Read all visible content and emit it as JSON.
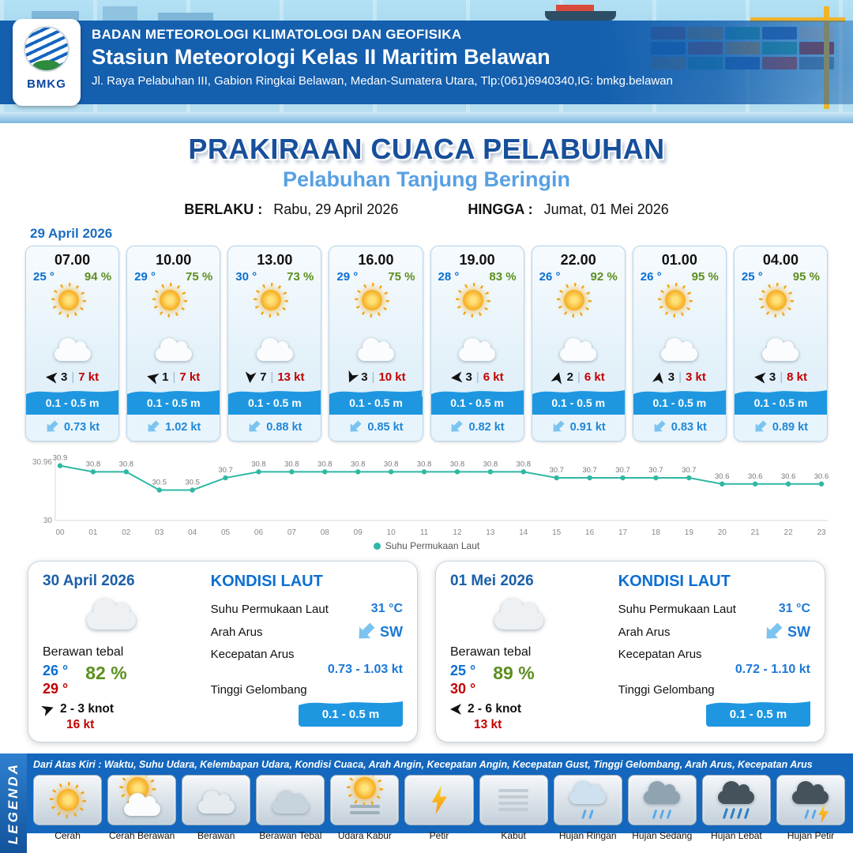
{
  "header": {
    "logo": "BMKG",
    "org": "BADAN METEOROLOGI KLIMATOLOGI DAN GEOFISIKA",
    "station": "Stasiun Meteorologi Kelas II Maritim Belawan",
    "address": "Jl. Raya Pelabuhan III, Gabion Ringkai Belawan, Medan-Sumatera Utara, Tlp:(061)6940340,IG: bmkg.belawan"
  },
  "title": "PRAKIRAAN CUACA PELABUHAN",
  "subtitle": "Pelabuhan Tanjung Beringin",
  "validity": {
    "berlaku_label": "BERLAKU :",
    "berlaku": "Rabu, 29 April 2026",
    "hingga_label": "HINGGA :",
    "hingga": "Jumat, 01 Mei 2026"
  },
  "forecast_date": "29 April 2026",
  "hourly": [
    {
      "time": "07.00",
      "temp": "25 °",
      "hum": "94 %",
      "wind_deg": 185,
      "wind": "3",
      "gust": "7 kt",
      "wave": "0.1 - 0.5 m",
      "current": "0.73 kt"
    },
    {
      "time": "10.00",
      "temp": "29 °",
      "hum": "75 %",
      "wind_deg": 195,
      "wind": "1",
      "gust": "7 kt",
      "wave": "0.1 - 0.5 m",
      "current": "1.02 kt"
    },
    {
      "time": "13.00",
      "temp": "30 °",
      "hum": "73 %",
      "wind_deg": 95,
      "wind": "7",
      "gust": "13 kt",
      "wave": "0.1 - 0.5 m",
      "current": "0.88 kt"
    },
    {
      "time": "16.00",
      "temp": "29 °",
      "hum": "75 %",
      "wind_deg": 115,
      "wind": "3",
      "gust": "10 kt",
      "wave": "0.1 - 0.5 m",
      "current": "0.85 kt"
    },
    {
      "time": "19.00",
      "temp": "28 °",
      "hum": "83 %",
      "wind_deg": 175,
      "wind": "3",
      "gust": "6 kt",
      "wave": "0.1 - 0.5 m",
      "current": "0.82 kt"
    },
    {
      "time": "22.00",
      "temp": "26 °",
      "hum": "92 %",
      "wind_deg": 285,
      "wind": "2",
      "gust": "6 kt",
      "wave": "0.1 - 0.5 m",
      "current": "0.91 kt"
    },
    {
      "time": "01.00",
      "temp": "26 °",
      "hum": "95 %",
      "wind_deg": 280,
      "wind": "3",
      "gust": "3 kt",
      "wave": "0.1 - 0.5 m",
      "current": "0.83 kt"
    },
    {
      "time": "04.00",
      "temp": "25 °",
      "hum": "95 %",
      "wind_deg": 185,
      "wind": "3",
      "gust": "8 kt",
      "wave": "0.1 - 0.5 m",
      "current": "0.89 kt"
    }
  ],
  "chart_data": {
    "type": "line",
    "title": "Suhu Permukaan Laut",
    "legend": "Suhu Permukaan Laut",
    "x": [
      "00",
      "01",
      "02",
      "03",
      "04",
      "05",
      "06",
      "07",
      "08",
      "09",
      "10",
      "11",
      "12",
      "13",
      "14",
      "15",
      "16",
      "17",
      "18",
      "19",
      "20",
      "21",
      "22",
      "23"
    ],
    "values": [
      30.9,
      30.8,
      30.8,
      30.5,
      30.5,
      30.7,
      30.8,
      30.8,
      30.8,
      30.8,
      30.8,
      30.8,
      30.8,
      30.8,
      30.8,
      30.7,
      30.7,
      30.7,
      30.7,
      30.7,
      30.6,
      30.6,
      30.6,
      30.6
    ],
    "ylim": [
      30,
      30.96
    ],
    "line_color": "#2fb8a4",
    "grid": false,
    "legend_position": "bottom"
  },
  "daily": [
    {
      "date": "30 April 2026",
      "condition": "Berawan tebal",
      "temp_min": "26 °",
      "hum": "82 %",
      "temp_max": "29 °",
      "wind_deg": 340,
      "wind": "2 - 3 knot",
      "gust": "16 kt",
      "sea": {
        "title": "KONDISI LAUT",
        "sst_label": "Suhu Permukaan Laut",
        "sst": "31 °C",
        "arus_label": "Arah Arus",
        "arus_dir": "SW",
        "kec_label": "Kecepatan Arus",
        "kec": "0.73 - 1.03 kt",
        "wave_label": "Tinggi Gelombang",
        "wave": "0.1 - 0.5 m"
      }
    },
    {
      "date": "01 Mei 2026",
      "condition": "Berawan tebal",
      "temp_min": "25 °",
      "hum": "89 %",
      "temp_max": "30 °",
      "wind_deg": 180,
      "wind": "2 - 6 knot",
      "gust": "13 kt",
      "sea": {
        "title": "KONDISI LAUT",
        "sst_label": "Suhu Permukaan Laut",
        "sst": "31 °C",
        "arus_label": "Arah Arus",
        "arus_dir": "SW",
        "kec_label": "Kecepatan Arus",
        "kec": "0.72 - 1.10 kt",
        "wave_label": "Tinggi Gelombang",
        "wave": "0.1 - 0.5 m"
      }
    }
  ],
  "legend_section": {
    "vertical_label": "LEGENDA",
    "description": "Dari Atas Kiri : Waktu, Suhu Udara, Kelembapan Udara, Kondisi Cuaca, Arah Angin, Kecepatan Angin, Kecepatan Gust, Tinggi Gelombang, Arah Arus, Kecepatan Arus",
    "items": [
      {
        "label": "Cerah",
        "icon": "sun"
      },
      {
        "label": "Cerah Berawan",
        "icon": "sun-cloud"
      },
      {
        "label": "Berawan",
        "icon": "cloud"
      },
      {
        "label": "Berawan Tebal",
        "icon": "cloud-dark"
      },
      {
        "label": "Udara Kabur",
        "icon": "haze"
      },
      {
        "label": "Petir",
        "icon": "lightning"
      },
      {
        "label": "Kabut",
        "icon": "fog"
      },
      {
        "label": "Hujan Ringan",
        "icon": "rain-light"
      },
      {
        "label": "Hujan Sedang",
        "icon": "rain-medium"
      },
      {
        "label": "Hujan Lebat",
        "icon": "rain-heavy"
      },
      {
        "label": "Hujan Petir",
        "icon": "storm"
      }
    ]
  },
  "colors": {
    "header_blue": "#0f5bac",
    "title_blue": "#174f9b",
    "subtitle_blue": "#58a0e3",
    "temp_blue": "#0a6fd1",
    "humidity_green": "#5c8f1e",
    "gust_red": "#c40000",
    "wave_blue": "#1f97e0",
    "current_blue": "#1f87d8",
    "chart_teal": "#2fb8a4",
    "legend_blue": "#1467bd"
  }
}
